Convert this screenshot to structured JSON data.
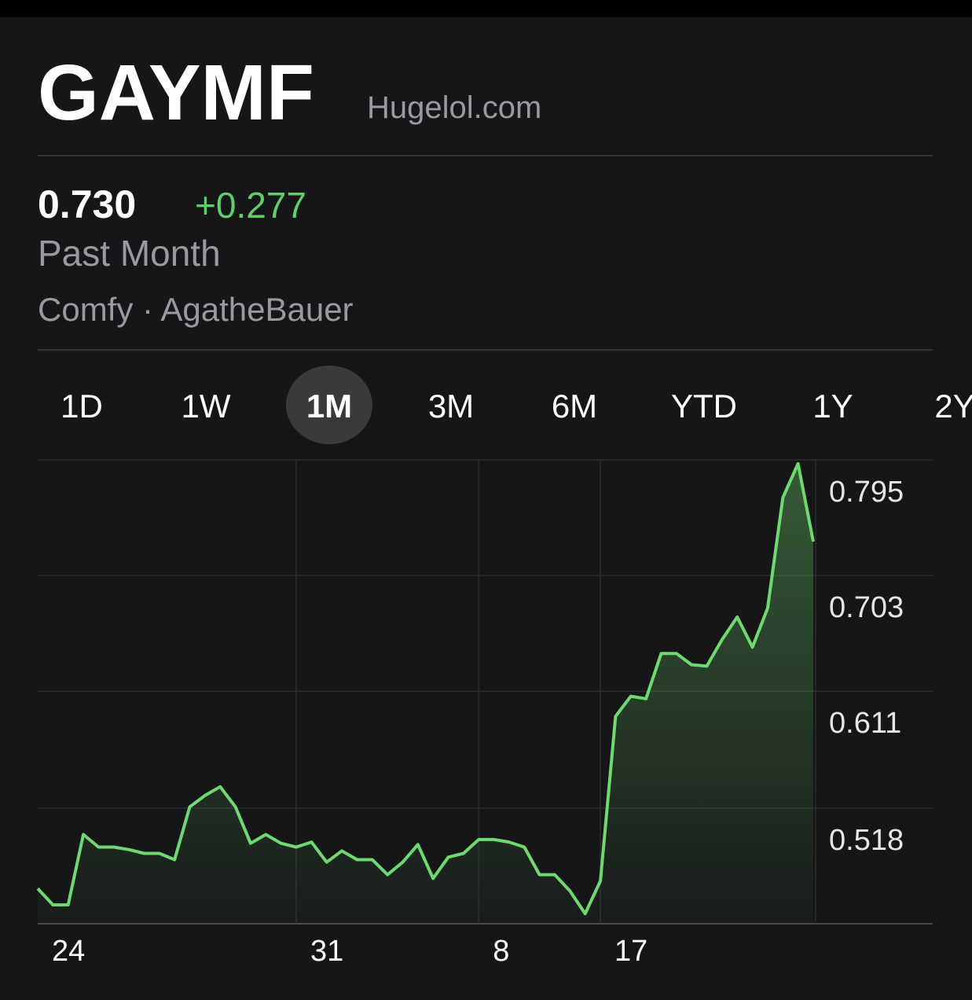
{
  "header": {
    "ticker": "GAYMF",
    "watermark": "Hugelol.com"
  },
  "quote": {
    "price": "0.730",
    "change": "+0.277",
    "period": "Past Month",
    "source": "Comfy · AgatheBauer"
  },
  "ranges": [
    "1D",
    "1W",
    "1M",
    "3M",
    "6M",
    "YTD",
    "1Y",
    "2Y"
  ],
  "selected_range": "1M",
  "chart_data": {
    "type": "line",
    "color": "#6fd971",
    "categories": [
      "24",
      null,
      null,
      null,
      null,
      null,
      null,
      null,
      null,
      null,
      null,
      null,
      null,
      null,
      null,
      null,
      null,
      "31",
      null,
      null,
      null,
      null,
      null,
      null,
      null,
      null,
      null,
      null,
      null,
      "8",
      null,
      null,
      null,
      null,
      null,
      null,
      null,
      "17",
      null,
      null,
      null,
      null,
      null,
      null,
      null,
      null,
      null,
      null,
      null,
      null,
      null,
      null
    ],
    "values": [
      0.454,
      0.441,
      0.441,
      0.497,
      0.487,
      0.487,
      0.485,
      0.482,
      0.482,
      0.477,
      0.519,
      0.528,
      0.535,
      0.519,
      0.49,
      0.497,
      0.49,
      0.487,
      0.491,
      0.475,
      0.484,
      0.477,
      0.477,
      0.465,
      0.475,
      0.489,
      0.462,
      0.479,
      0.482,
      0.493,
      0.493,
      0.491,
      0.487,
      0.465,
      0.465,
      0.452,
      0.434,
      0.46,
      0.591,
      0.607,
      0.605,
      0.641,
      0.641,
      0.632,
      0.631,
      0.652,
      0.67,
      0.646,
      0.677,
      0.765,
      0.792,
      0.73
    ],
    "ylim": [
      0.426,
      0.795
    ],
    "yticks": [
      0.795,
      0.703,
      0.611,
      0.518
    ],
    "grid": true
  }
}
